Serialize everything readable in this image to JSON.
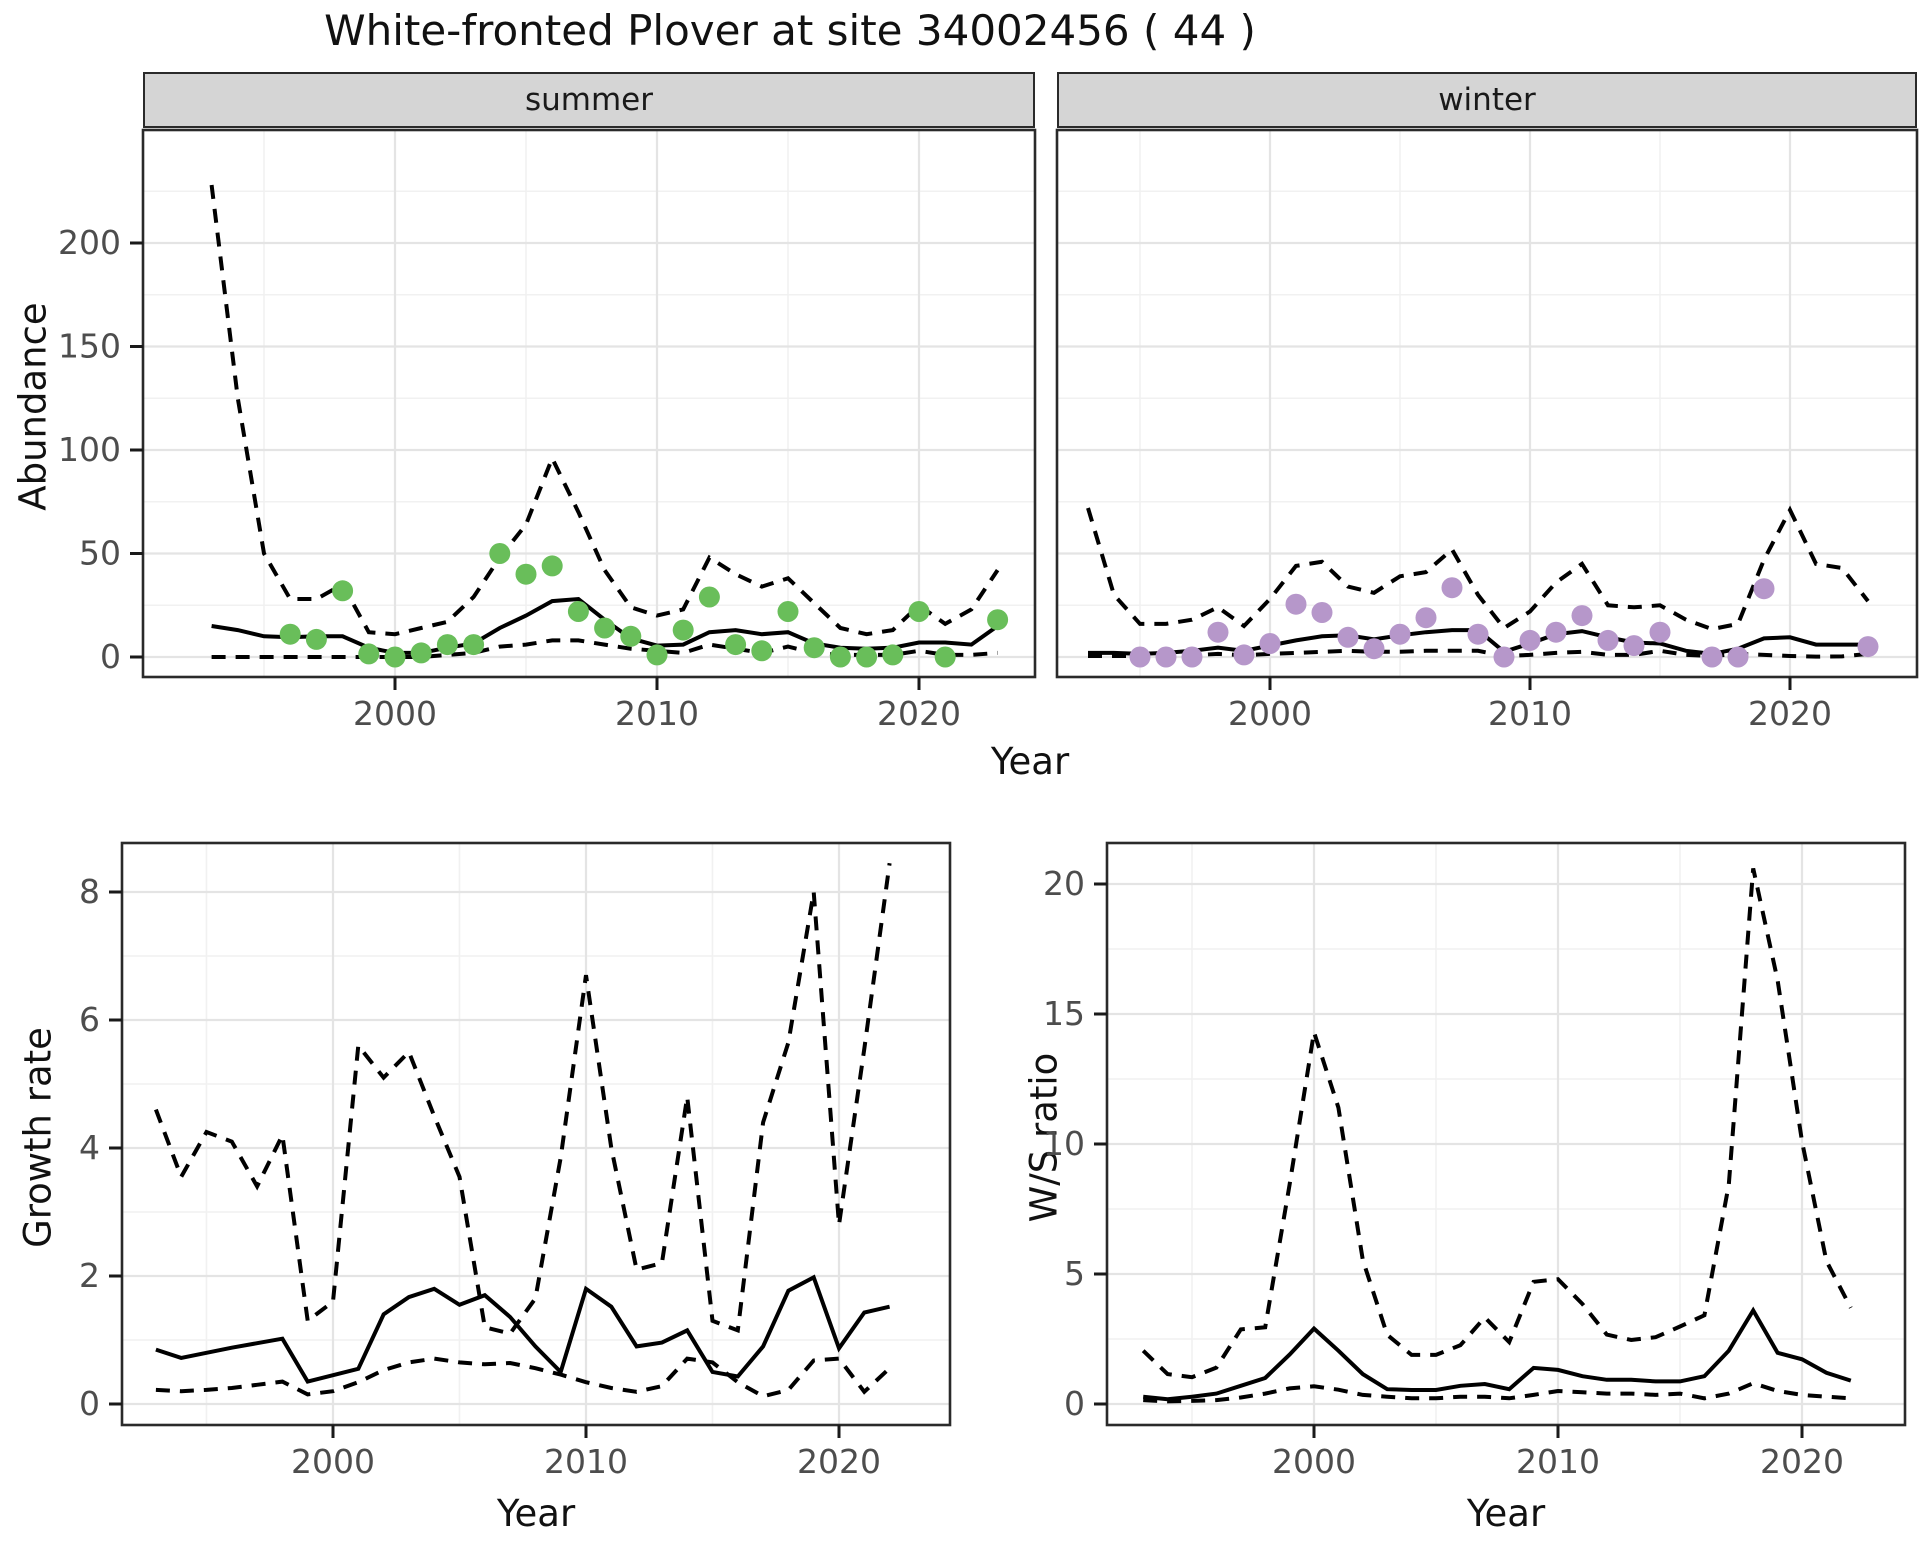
{
  "title": "White-fronted Plover at site 34002456 ( 44 )",
  "colors": {
    "summer_dot": "#69be5a",
    "winter_dot": "#b697ca",
    "line": "#000000",
    "strip_background": "#d5d5d5",
    "panel_border": "#2a2a2a",
    "grid_major": "#e4e4e4",
    "grid_minor": "#f1f1f1",
    "tick_label": "#4d4d4d"
  },
  "chart_data": [
    {
      "id": "summer",
      "type": "line",
      "facet": "summer",
      "ylabel": "Abundance",
      "xlabel": "Year",
      "x_ticks": [
        2000,
        2010,
        2020
      ],
      "x_minor": [
        1995,
        2005,
        2015,
        2025
      ],
      "y_ticks": [
        0,
        50,
        100,
        150,
        200
      ],
      "y_minor": [
        25,
        75,
        125,
        175,
        225
      ],
      "ylim": [
        -10,
        255
      ],
      "grid": true,
      "legend": "none",
      "years": [
        1993,
        1994,
        1995,
        1996,
        1997,
        1998,
        1999,
        2000,
        2001,
        2002,
        2003,
        2004,
        2005,
        2006,
        2007,
        2008,
        2009,
        2010,
        2011,
        2012,
        2013,
        2014,
        2015,
        2016,
        2017,
        2018,
        2019,
        2020,
        2021,
        2022,
        2023
      ],
      "series": [
        {
          "name": "observed",
          "style": "points",
          "values": [
            null,
            null,
            null,
            11,
            8.5,
            32,
            1.5,
            0,
            2,
            6,
            6,
            50,
            40,
            44,
            22,
            14,
            10,
            1,
            13,
            29,
            6,
            3,
            22,
            4.5,
            0,
            0,
            1,
            22,
            0,
            null,
            18
          ]
        },
        {
          "name": "median",
          "style": "solid",
          "values": [
            15,
            13,
            10,
            9.5,
            10,
            10,
            4.5,
            2,
            2,
            4.5,
            6.5,
            14,
            20,
            27,
            28,
            18,
            9,
            5.5,
            6,
            12,
            13,
            11,
            12,
            6.5,
            4.5,
            4,
            4.5,
            7,
            7,
            6,
            15
          ]
        },
        {
          "name": "ci_upper_97.5",
          "style": "dashed",
          "values": [
            228,
            125,
            50,
            28,
            28,
            35,
            12,
            11,
            14,
            17,
            29,
            48,
            64,
            96,
            70,
            42,
            24,
            20,
            23,
            48,
            40,
            34,
            38,
            26,
            14,
            11,
            13,
            25,
            16,
            23,
            42
          ]
        },
        {
          "name": "ci_lower_2.5",
          "style": "dashed",
          "values": [
            0,
            0,
            0,
            0,
            0,
            0,
            0,
            0,
            0,
            1,
            2,
            5,
            6,
            8,
            8,
            6,
            4,
            3,
            2,
            6,
            4,
            2,
            5,
            2,
            1,
            1,
            1,
            3,
            1,
            1,
            2
          ]
        }
      ]
    },
    {
      "id": "winter",
      "type": "line",
      "facet": "winter",
      "ylabel": "Abundance",
      "xlabel": "Year",
      "x_ticks": [
        2000,
        2010,
        2020
      ],
      "x_minor": [
        1995,
        2005,
        2015,
        2025
      ],
      "y_ticks": [
        0,
        50,
        100,
        150,
        200
      ],
      "y_minor": [
        25,
        75,
        125,
        175,
        225
      ],
      "ylim": [
        -10,
        255
      ],
      "grid": true,
      "legend": "none",
      "years": [
        1993,
        1994,
        1995,
        1996,
        1997,
        1998,
        1999,
        2000,
        2001,
        2002,
        2003,
        2004,
        2005,
        2006,
        2007,
        2008,
        2009,
        2010,
        2011,
        2012,
        2013,
        2014,
        2015,
        2016,
        2017,
        2018,
        2019,
        2020,
        2021,
        2022,
        2023
      ],
      "series": [
        {
          "name": "observed",
          "style": "points",
          "values": [
            null,
            null,
            0,
            0,
            0,
            12,
            1,
            6.5,
            25.5,
            21.5,
            9.5,
            4,
            11,
            19,
            33.5,
            11,
            0,
            8,
            12,
            20,
            8,
            5.5,
            12,
            null,
            0,
            0,
            33,
            null,
            null,
            null,
            5
          ]
        },
        {
          "name": "median",
          "style": "solid",
          "values": [
            2,
            2,
            1.5,
            2,
            3,
            4.5,
            3,
            5.5,
            8,
            10,
            10.5,
            8.5,
            10.5,
            12,
            13,
            13,
            2.5,
            6.5,
            11,
            12.5,
            9.5,
            7,
            6.5,
            3,
            1.5,
            4,
            9,
            9.5,
            6,
            6,
            6
          ]
        },
        {
          "name": "ci_upper_97.5",
          "style": "dashed",
          "values": [
            72,
            30,
            16,
            16,
            18,
            24,
            15,
            28,
            44,
            46,
            34,
            31,
            39,
            41,
            52,
            30,
            14,
            22,
            36,
            45,
            25,
            24,
            25,
            18,
            13.5,
            16,
            47,
            71,
            45,
            43,
            27
          ]
        },
        {
          "name": "ci_lower_2.5",
          "style": "dashed",
          "values": [
            0.5,
            0.5,
            0.5,
            0.5,
            0.8,
            1.5,
            0.8,
            1.5,
            2,
            2.5,
            3,
            2.5,
            2.5,
            3,
            3,
            3,
            0.5,
            1,
            2,
            2.5,
            1,
            1,
            3,
            1,
            0.5,
            1.5,
            1,
            0.5,
            0.2,
            0.3,
            1.5
          ]
        }
      ]
    },
    {
      "id": "growth_rate",
      "type": "line",
      "facet": null,
      "ylabel": "Growth rate",
      "xlabel": "Year",
      "x_ticks": [
        2000,
        2010,
        2020
      ],
      "x_minor": [
        1995,
        2005,
        2015,
        2025
      ],
      "y_ticks": [
        0,
        2,
        4,
        6,
        8
      ],
      "y_minor": [
        1,
        3,
        5,
        7
      ],
      "ylim": [
        -0.35,
        8.8
      ],
      "grid": true,
      "legend": "none",
      "years": [
        1993,
        1994,
        1995,
        1996,
        1997,
        1998,
        1999,
        2000,
        2001,
        2002,
        2003,
        2004,
        2005,
        2006,
        2007,
        2008,
        2009,
        2010,
        2011,
        2012,
        2013,
        2014,
        2015,
        2016,
        2017,
        2018,
        2019,
        2020,
        2021,
        2022
      ],
      "series": [
        {
          "name": "median",
          "style": "solid",
          "values": [
            0.85,
            0.72,
            0.8,
            0.88,
            0.95,
            1.02,
            0.35,
            0.45,
            0.55,
            1.4,
            1.67,
            1.8,
            1.55,
            1.7,
            1.36,
            0.9,
            0.5,
            1.8,
            1.52,
            0.9,
            0.96,
            1.15,
            0.5,
            0.43,
            0.9,
            1.77,
            1.98,
            0.87,
            1.43,
            1.52
          ]
        },
        {
          "name": "ci_upper_97.5",
          "style": "dashed",
          "values": [
            4.6,
            3.55,
            4.25,
            4.1,
            3.4,
            4.2,
            1.3,
            1.6,
            5.6,
            5.1,
            5.5,
            4.5,
            3.55,
            1.2,
            1.1,
            1.65,
            3.85,
            6.7,
            4.0,
            2.1,
            2.2,
            4.8,
            1.3,
            1.15,
            4.4,
            5.65,
            8.0,
            2.8,
            5.55,
            8.45
          ]
        },
        {
          "name": "ci_lower_2.5",
          "style": "dashed",
          "values": [
            0.22,
            0.2,
            0.22,
            0.25,
            0.3,
            0.35,
            0.15,
            0.2,
            0.34,
            0.53,
            0.65,
            0.71,
            0.65,
            0.62,
            0.64,
            0.56,
            0.46,
            0.34,
            0.25,
            0.19,
            0.28,
            0.71,
            0.65,
            0.34,
            0.12,
            0.22,
            0.68,
            0.71,
            0.19,
            0.56
          ]
        }
      ]
    },
    {
      "id": "ws_ratio",
      "type": "line",
      "facet": null,
      "ylabel": "W/S ratio",
      "xlabel": "Year",
      "x_ticks": [
        2000,
        2010,
        2020
      ],
      "x_minor": [
        1995,
        2005,
        2015,
        2025
      ],
      "y_ticks": [
        0,
        5,
        10,
        15,
        20
      ],
      "y_minor": [
        2.5,
        7.5,
        12.5,
        17.5
      ],
      "ylim": [
        -0.85,
        21.6
      ],
      "grid": true,
      "legend": "none",
      "years": [
        1993,
        1994,
        1995,
        1996,
        1997,
        1998,
        1999,
        2000,
        2001,
        2002,
        2003,
        2004,
        2005,
        2006,
        2007,
        2008,
        2009,
        2010,
        2011,
        2012,
        2013,
        2014,
        2015,
        2016,
        2017,
        2018,
        2019,
        2020,
        2021,
        2022
      ],
      "series": [
        {
          "name": "median",
          "style": "solid",
          "values": [
            0.28,
            0.18,
            0.28,
            0.4,
            0.7,
            1.0,
            1.9,
            2.9,
            2.05,
            1.15,
            0.57,
            0.54,
            0.54,
            0.7,
            0.77,
            0.57,
            1.39,
            1.31,
            1.07,
            0.93,
            0.93,
            0.87,
            0.87,
            1.07,
            2.05,
            3.6,
            1.97,
            1.72,
            1.2,
            0.9
          ]
        },
        {
          "name": "ci_upper_97.5",
          "style": "dashed",
          "values": [
            2.05,
            1.15,
            1.03,
            1.4,
            2.87,
            2.95,
            8.44,
            14.3,
            11.4,
            5.54,
            2.66,
            1.89,
            1.89,
            2.26,
            3.33,
            2.38,
            4.7,
            4.8,
            3.85,
            2.67,
            2.46,
            2.57,
            2.98,
            3.41,
            8.44,
            20.6,
            16.3,
            10.1,
            5.5,
            3.7
          ]
        },
        {
          "name": "ci_lower_2.5",
          "style": "dashed",
          "values": [
            0.15,
            0.1,
            0.12,
            0.15,
            0.25,
            0.4,
            0.6,
            0.68,
            0.55,
            0.35,
            0.28,
            0.22,
            0.22,
            0.28,
            0.28,
            0.22,
            0.35,
            0.5,
            0.45,
            0.4,
            0.4,
            0.35,
            0.4,
            0.22,
            0.4,
            0.8,
            0.5,
            0.35,
            0.28,
            0.22
          ]
        }
      ]
    }
  ]
}
